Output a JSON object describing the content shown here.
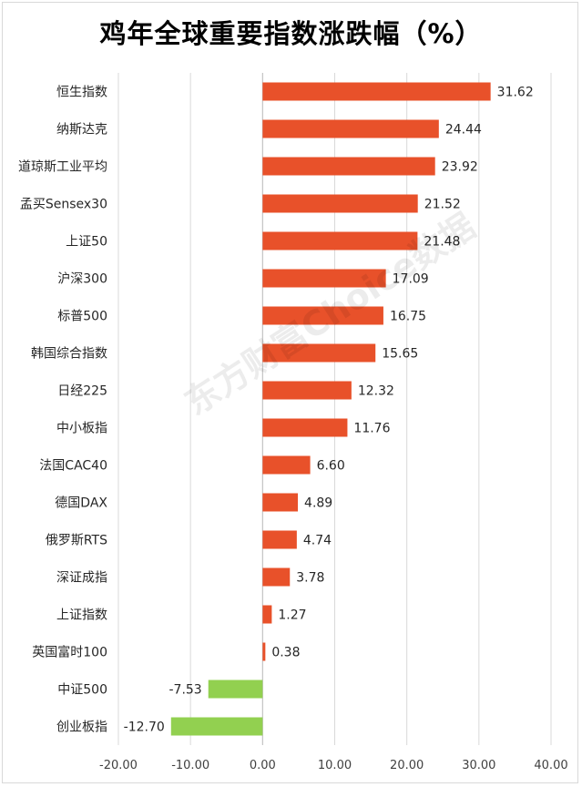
{
  "chart_data": {
    "type": "bar",
    "orientation": "horizontal",
    "title": "鸡年全球重要指数涨跌幅（%）",
    "categories": [
      "恒生指数",
      "纳斯达克",
      "道琼斯工业平均",
      "孟买Sensex30",
      "上证50",
      "沪深300",
      "标普500",
      "韩国综合指数",
      "日经225",
      "中小板指",
      "法国CAC40",
      "德国DAX",
      "俄罗斯RTS",
      "深证成指",
      "上证指数",
      "英国富时100",
      "中证500",
      "创业板指"
    ],
    "values": [
      31.62,
      24.44,
      23.92,
      21.52,
      21.48,
      17.09,
      16.75,
      15.65,
      12.32,
      11.76,
      6.6,
      4.89,
      4.74,
      3.78,
      1.27,
      0.38,
      -7.53,
      -12.7
    ],
    "value_labels": [
      "31.62",
      "24.44",
      "23.92",
      "21.52",
      "21.48",
      "17.09",
      "16.75",
      "15.65",
      "12.32",
      "11.76",
      "6.60",
      "4.89",
      "4.74",
      "3.78",
      "1.27",
      "0.38",
      "-7.53",
      "-12.70"
    ],
    "xlim": [
      -20,
      40
    ],
    "x_ticks": [
      -20,
      -10,
      0,
      10,
      20,
      30,
      40
    ],
    "x_tick_labels": [
      "-20.00",
      "-10.00",
      "0.00",
      "10.00",
      "20.00",
      "30.00",
      "40.00"
    ],
    "grid": true,
    "colors": {
      "positive": "#e8512a",
      "negative": "#92d050",
      "grid": "#d9d9d9"
    }
  },
  "watermark": "东方财富Choice数据"
}
